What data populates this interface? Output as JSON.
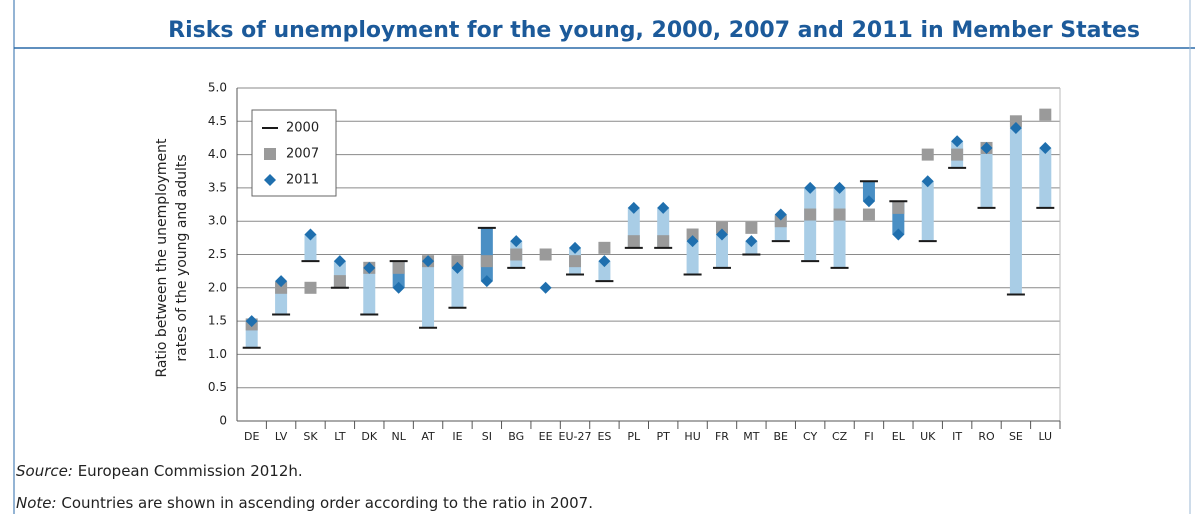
{
  "chart_data": {
    "type": "range-dot",
    "title": "Risks of unemployment for the young, 2000, 2007 and 2011 in Member States",
    "ylabel": [
      "Ratio between the unemployment",
      "rates of the young and adults"
    ],
    "categories": [
      "DE",
      "LV",
      "SK",
      "LT",
      "DK",
      "NL",
      "AT",
      "IE",
      "SI",
      "BG",
      "EE",
      "EU-27",
      "ES",
      "PL",
      "PT",
      "HU",
      "FR",
      "MT",
      "BE",
      "CY",
      "CZ",
      "FI",
      "EL",
      "UK",
      "IT",
      "RO",
      "SE",
      "LU"
    ],
    "series": [
      {
        "name": "2000",
        "color": "#1a1a1a",
        "marker": "dash",
        "values": [
          1.1,
          1.6,
          2.4,
          2.0,
          1.6,
          2.4,
          1.4,
          1.7,
          2.9,
          2.3,
          null,
          2.2,
          2.1,
          2.6,
          2.6,
          2.2,
          2.3,
          2.5,
          2.7,
          2.4,
          2.3,
          3.6,
          3.3,
          2.7,
          3.8,
          3.2,
          1.9,
          3.2
        ]
      },
      {
        "name": "2007",
        "color": "#9a9a9a",
        "marker": "square",
        "values": [
          1.45,
          2.0,
          2.0,
          2.1,
          2.3,
          2.3,
          2.4,
          2.4,
          2.4,
          2.5,
          2.5,
          2.4,
          2.6,
          2.7,
          2.7,
          2.8,
          2.9,
          2.9,
          3.0,
          3.1,
          3.1,
          3.1,
          3.2,
          4.0,
          4.0,
          4.1,
          4.5,
          4.6
        ]
      },
      {
        "name": "2011",
        "color": "#1f6fae",
        "marker": "diamond",
        "values": [
          1.5,
          2.1,
          2.8,
          2.4,
          2.3,
          2.0,
          2.4,
          2.3,
          2.1,
          2.7,
          2.0,
          2.6,
          2.4,
          3.2,
          3.2,
          2.7,
          2.8,
          2.7,
          3.1,
          3.5,
          3.5,
          3.3,
          2.8,
          3.6,
          4.2,
          4.1,
          4.4,
          4.1
        ]
      }
    ],
    "range_color": "#a9cde6",
    "range_color_decline": "#4a8fc4",
    "ylim": [
      0,
      5
    ],
    "yticks": [
      0,
      0.5,
      {
        "value": 1,
        "label": "1.0"
      },
      1.5,
      {
        "value": 2,
        "label": "2.0"
      },
      2.5,
      {
        "value": 3,
        "label": "3.0"
      },
      3.5,
      {
        "value": 4,
        "label": "4.0"
      },
      4.5,
      {
        "value": 5,
        "label": "5.0"
      }
    ],
    "grid": true,
    "legend": "upper left",
    "source_label": "Source:",
    "source": "European Commission 2012h.",
    "note_label": "Note:",
    "note": "Countries are shown in ascending order according to the ratio in 2007."
  }
}
